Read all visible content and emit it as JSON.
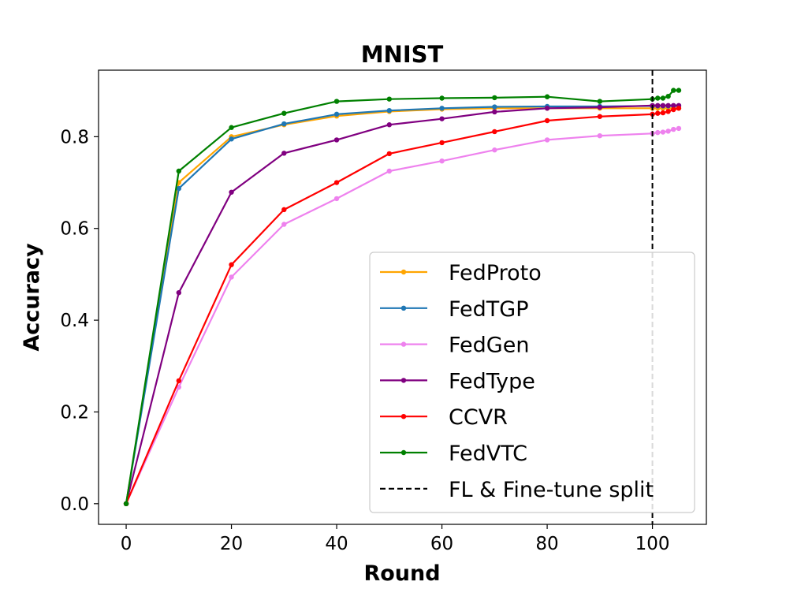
{
  "chart_data": {
    "type": "line",
    "title": "MNIST",
    "xlabel": "Round",
    "ylabel": "Accuracy",
    "xlim": [
      -5.25,
      110.25
    ],
    "ylim": [
      -0.045,
      0.945
    ],
    "xticks": [
      0,
      20,
      40,
      60,
      80,
      100
    ],
    "yticks": [
      0.0,
      0.2,
      0.4,
      0.6,
      0.8
    ],
    "xtick_labels": [
      "0",
      "20",
      "40",
      "60",
      "80",
      "100"
    ],
    "ytick_labels": [
      "0.0",
      "0.2",
      "0.4",
      "0.6",
      "0.8"
    ],
    "grid": false,
    "legend_position": "lower-right",
    "split": {
      "x": 100,
      "label": "FL & Fine-tune split",
      "color": "#000000"
    },
    "x": [
      0,
      10,
      20,
      30,
      40,
      50,
      60,
      70,
      80,
      90,
      100,
      101,
      102,
      103,
      104,
      105
    ],
    "series": [
      {
        "name": "FedProto",
        "color": "#ffa500",
        "values": [
          0.0,
          0.7,
          0.8,
          0.826,
          0.845,
          0.855,
          0.86,
          0.862,
          0.862,
          0.862,
          0.862,
          0.862,
          0.862,
          0.862,
          0.862,
          0.862
        ]
      },
      {
        "name": "FedTGP",
        "color": "#1f77b4",
        "values": [
          0.0,
          0.687,
          0.795,
          0.828,
          0.849,
          0.857,
          0.862,
          0.865,
          0.866,
          0.866,
          0.867,
          0.867,
          0.867,
          0.867,
          0.867,
          0.867
        ]
      },
      {
        "name": "FedGen",
        "color": "#ee82ee",
        "values": [
          0.0,
          0.254,
          0.494,
          0.609,
          0.665,
          0.725,
          0.747,
          0.771,
          0.793,
          0.802,
          0.807,
          0.809,
          0.81,
          0.812,
          0.816,
          0.818
        ]
      },
      {
        "name": "FedType",
        "color": "#800080",
        "values": [
          0.0,
          0.46,
          0.679,
          0.764,
          0.793,
          0.826,
          0.839,
          0.854,
          0.862,
          0.864,
          0.868,
          0.868,
          0.868,
          0.868,
          0.868,
          0.868
        ]
      },
      {
        "name": "CCVR",
        "color": "#ff0000",
        "values": [
          0.0,
          0.268,
          0.521,
          0.641,
          0.7,
          0.763,
          0.787,
          0.811,
          0.835,
          0.844,
          0.849,
          0.851,
          0.852,
          0.855,
          0.859,
          0.862
        ]
      },
      {
        "name": "FedVTC",
        "color": "#008000",
        "values": [
          0.0,
          0.725,
          0.82,
          0.851,
          0.877,
          0.882,
          0.884,
          0.885,
          0.887,
          0.877,
          0.882,
          0.884,
          0.884,
          0.888,
          0.901,
          0.901
        ]
      }
    ]
  }
}
